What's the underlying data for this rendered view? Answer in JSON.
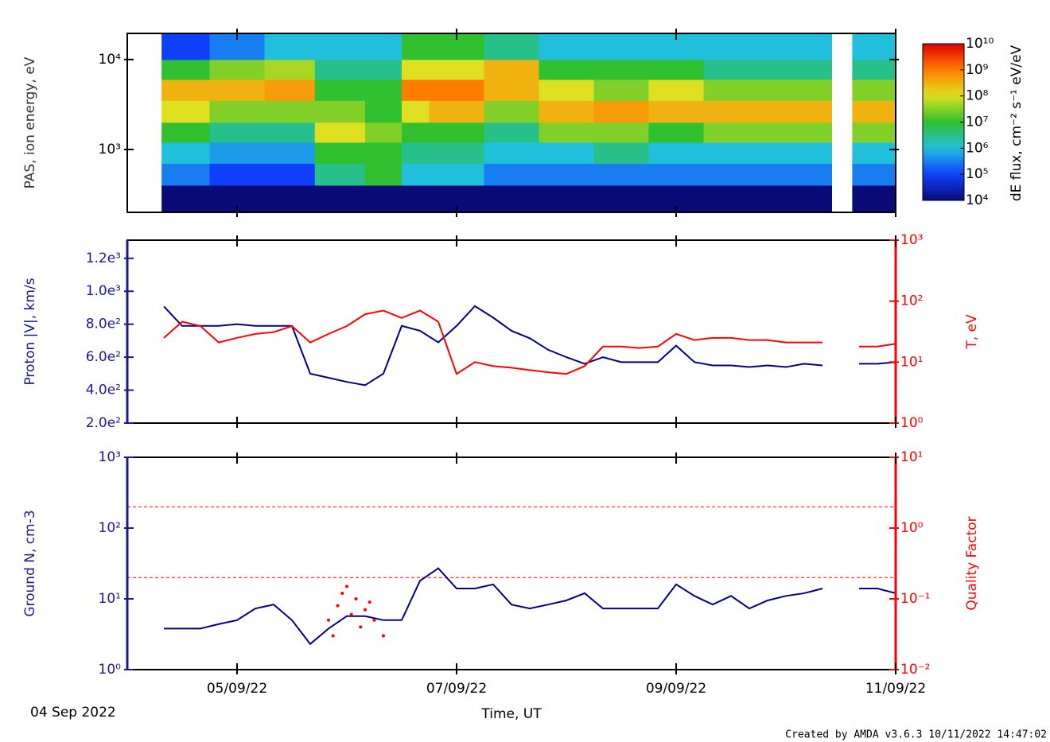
{
  "chart_data": [
    {
      "type": "spectrogram",
      "ylabel": "PAS, ion energy, eV",
      "xlim": [
        0,
        168
      ],
      "ylim": [
        200,
        19500
      ],
      "yscale": "log",
      "yticks": [
        {
          "value": 1000,
          "label": "10³"
        },
        {
          "value": 10000,
          "label": "10⁴"
        }
      ],
      "t_edges": [
        7.5,
        18,
        30,
        41,
        52,
        60,
        66,
        78,
        90,
        102,
        114,
        126,
        140,
        154,
        158.5,
        168
      ],
      "e_edges": [
        200,
        400,
        700,
        1200,
        2000,
        3500,
        6000,
        10000,
        19500
      ],
      "z": [
        [
          10000.0,
          300000.0,
          1000000.0,
          10000000.0,
          100000000.0,
          300000000.0,
          10000000.0,
          100000.0
        ],
        [
          10000.0,
          100000.0,
          500000.0,
          3000000.0,
          30000000.0,
          300000000.0,
          30000000.0,
          300000.0
        ],
        [
          10000.0,
          100000.0,
          500000.0,
          3000000.0,
          30000000.0,
          500000000.0,
          50000000.0,
          1000000.0
        ],
        [
          10000.0,
          3000000.0,
          10000000.0,
          100000000.0,
          30000000.0,
          10000000.0,
          3000000.0,
          1000000.0
        ],
        [
          10000.0,
          10000000.0,
          10000000.0,
          30000000.0,
          10000000.0,
          10000000.0,
          3000000.0,
          1000000.0
        ],
        [
          10000.0,
          1000000.0,
          3000000.0,
          10000000.0,
          100000000.0,
          1000000000.0,
          100000000.0,
          10000000.0
        ],
        [
          10000.0,
          1000000.0,
          3000000.0,
          10000000.0,
          300000000.0,
          1000000000.0,
          100000000.0,
          10000000.0
        ],
        [
          10000.0,
          300000.0,
          1000000.0,
          3000000.0,
          30000000.0,
          300000000.0,
          300000000.0,
          3000000.0
        ],
        [
          10000.0,
          300000.0,
          1000000.0,
          30000000.0,
          300000000.0,
          100000000.0,
          10000000.0,
          1000000.0
        ],
        [
          10000.0,
          300000.0,
          3000000.0,
          30000000.0,
          500000000.0,
          30000000.0,
          10000000.0,
          1000000.0
        ],
        [
          10000.0,
          300000.0,
          1000000.0,
          10000000.0,
          300000000.0,
          100000000.0,
          10000000.0,
          1000000.0
        ],
        [
          10000.0,
          300000.0,
          1000000.0,
          30000000.0,
          300000000.0,
          30000000.0,
          3000000.0,
          1000000.0
        ],
        [
          10000.0,
          300000.0,
          1000000.0,
          30000000.0,
          300000000.0,
          30000000.0,
          3000000.0,
          1000000.0
        ],
        [
          null,
          null,
          null,
          null,
          null,
          null,
          null,
          null
        ],
        [
          10000.0,
          300000.0,
          1000000.0,
          30000000.0,
          300000000.0,
          30000000.0,
          3000000.0,
          1000000.0
        ]
      ],
      "zlim": [
        10000.0,
        10000000000.0
      ],
      "zticks": [
        {
          "value": 10000.0,
          "label": "10⁴"
        },
        {
          "value": 100000.0,
          "label": "10⁵"
        },
        {
          "value": 1000000.0,
          "label": "10⁶"
        },
        {
          "value": 10000000.0,
          "label": "10⁷"
        },
        {
          "value": 100000000.0,
          "label": "10⁸"
        },
        {
          "value": 1000000000.0,
          "label": "10⁹"
        },
        {
          "value": 10000000000.0,
          "label": "10¹⁰"
        }
      ],
      "zlabel": "dE flux, cm⁻² s⁻¹ eV/eV"
    },
    {
      "type": "line",
      "ylabel": "Proton |V|, km/s",
      "y2label": "T, eV",
      "ycolor": "#1a1a8c",
      "y2color": "#ff0000",
      "xlim": [
        0,
        168
      ],
      "ylim": [
        200,
        1310
      ],
      "yscale": "linear",
      "y2lim": [
        1,
        1000
      ],
      "y2scale": "log",
      "yticks": [
        {
          "value": 200,
          "label": "2.0e²"
        },
        {
          "value": 400,
          "label": "4.0e²"
        },
        {
          "value": 600,
          "label": "6.0e²"
        },
        {
          "value": 800,
          "label": "8.0e²"
        },
        {
          "value": 1000,
          "label": "1.0e³"
        },
        {
          "value": 1200,
          "label": "1.2e³"
        }
      ],
      "y2ticks": [
        {
          "value": 1,
          "label": "10⁰"
        },
        {
          "value": 10,
          "label": "10¹"
        },
        {
          "value": 100,
          "label": "10²"
        },
        {
          "value": 1000,
          "label": "10³"
        }
      ],
      "x": [
        0,
        4,
        8,
        12,
        16,
        20,
        24,
        28,
        32,
        36,
        40,
        44,
        48,
        52,
        56,
        60,
        64,
        68,
        72,
        76,
        80,
        84,
        88,
        92,
        96,
        100,
        104,
        108,
        112,
        116,
        120,
        124,
        128,
        132,
        136,
        140,
        144,
        148,
        152,
        156,
        160,
        164,
        168
      ],
      "series": [
        {
          "color": "#000080",
          "values": [
            null,
            null,
            908,
            790,
            790,
            790,
            800,
            790,
            790,
            790,
            500,
            475,
            450,
            430,
            500,
            790,
            760,
            690,
            790,
            910,
            840,
            760,
            715,
            645,
            600,
            560,
            600,
            570,
            570,
            570,
            670,
            570,
            550,
            550,
            540,
            550,
            540,
            560,
            550,
            null,
            560,
            560,
            570
          ]
        },
        {
          "color": "#ff0000",
          "axis": "y2",
          "values": [
            null,
            null,
            25,
            46,
            39,
            21,
            25,
            29,
            31,
            39,
            21,
            29,
            39,
            61,
            70,
            53,
            70,
            46,
            6.4,
            10,
            8.6,
            8.1,
            7.4,
            6.8,
            6.4,
            8.6,
            18,
            18,
            17,
            18,
            29,
            23,
            25,
            25,
            23,
            23,
            21,
            21,
            21,
            null,
            18,
            18,
            20
          ]
        }
      ]
    },
    {
      "type": "line",
      "ylabel": "Ground N, cm-3",
      "y2label": "Quality Factor",
      "xlabel": "Time, UT",
      "start_label": "04 Sep 2022",
      "ycolor": "#1a1a8c",
      "y2color": "#ff0000",
      "xlim": [
        0,
        168
      ],
      "ylim": [
        1,
        1000
      ],
      "yscale": "log",
      "y2lim": [
        0.01,
        10
      ],
      "y2scale": "log",
      "xticks": [
        {
          "value": 24,
          "label": "05/09/22"
        },
        {
          "value": 72,
          "label": "07/09/22"
        },
        {
          "value": 120,
          "label": "09/09/22"
        },
        {
          "value": 168,
          "label": "11/09/22"
        }
      ],
      "yticks": [
        {
          "value": 1,
          "label": "10⁰"
        },
        {
          "value": 10,
          "label": "10¹"
        },
        {
          "value": 100,
          "label": "10²"
        },
        {
          "value": 1000,
          "label": "10³"
        }
      ],
      "y2ticks": [
        {
          "value": 0.01,
          "label": "10⁻²"
        },
        {
          "value": 0.1,
          "label": "10⁻¹"
        },
        {
          "value": 1,
          "label": "10⁰"
        },
        {
          "value": 10,
          "label": "10¹"
        }
      ],
      "hlines": [
        2,
        0.2
      ],
      "x": [
        0,
        4,
        8,
        12,
        16,
        20,
        24,
        28,
        32,
        36,
        40,
        44,
        48,
        52,
        56,
        60,
        64,
        68,
        72,
        76,
        80,
        84,
        88,
        92,
        96,
        100,
        104,
        108,
        112,
        116,
        120,
        124,
        128,
        132,
        136,
        140,
        144,
        148,
        152,
        156,
        160,
        164,
        168
      ],
      "series": [
        {
          "color": "#000080",
          "values": [
            null,
            null,
            3.8,
            3.8,
            3.8,
            4.4,
            5,
            7.3,
            8.3,
            5,
            2.3,
            3.8,
            5.7,
            5.7,
            5,
            5,
            18,
            27,
            14,
            14,
            16,
            8.3,
            7.3,
            8.3,
            9.5,
            12,
            7.3,
            7.3,
            7.3,
            7.3,
            16,
            11,
            8.3,
            11,
            7.3,
            9.5,
            11,
            12,
            14,
            null,
            14,
            14,
            12
          ]
        },
        {
          "color": "#ff0000",
          "axis": "y2",
          "type": "scatter",
          "x": [
            44,
            45,
            46,
            47,
            48,
            49,
            50,
            51,
            52,
            53,
            54,
            56
          ],
          "values": [
            0.05,
            0.03,
            0.08,
            0.12,
            0.15,
            0.06,
            0.1,
            0.04,
            0.07,
            0.09,
            0.05,
            0.03
          ]
        }
      ]
    }
  ],
  "footer": "Created by AMDA v3.6.3 10/11/2022 14:47:02"
}
